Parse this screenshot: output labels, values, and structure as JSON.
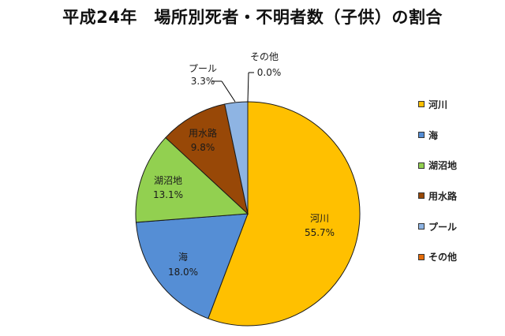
{
  "title": "平成24年　場所別死者・不明者数（子供）の割合",
  "chart_data": {
    "type": "pie",
    "title": "平成24年　場所別死者・不明者数（子供）の割合",
    "categories": [
      "河川",
      "海",
      "湖沼地",
      "用水路",
      "プール",
      "その他"
    ],
    "values": [
      55.7,
      18.0,
      13.1,
      9.8,
      3.3,
      0.0
    ],
    "value_labels": [
      "55.7%",
      "18.0%",
      "13.1%",
      "9.8%",
      "3.3%",
      "0.0%"
    ],
    "colors": [
      "#FFC000",
      "#558ED5",
      "#92D050",
      "#984807",
      "#8EB4E3",
      "#E46C0A"
    ],
    "start_angle": "12 o'clock",
    "direction": "clockwise",
    "legend_position": "right"
  },
  "legend": {
    "items": [
      {
        "label": "河川",
        "color": "#FFC000"
      },
      {
        "label": "海",
        "color": "#558ED5"
      },
      {
        "label": "湖沼地",
        "color": "#92D050"
      },
      {
        "label": "用水路",
        "color": "#984807"
      },
      {
        "label": "プール",
        "color": "#8EB4E3"
      },
      {
        "label": "その他",
        "color": "#E46C0A"
      }
    ]
  },
  "labels": {
    "river": {
      "name": "河川",
      "pct": "55.7%"
    },
    "sea": {
      "name": "海",
      "pct": "18.0%"
    },
    "lake": {
      "name": "湖沼地",
      "pct": "13.1%"
    },
    "canal": {
      "name": "用水路",
      "pct": "9.8%"
    },
    "pool": {
      "name": "プール",
      "pct": "3.3%"
    },
    "other": {
      "name": "その他",
      "pct": "0.0%"
    }
  }
}
